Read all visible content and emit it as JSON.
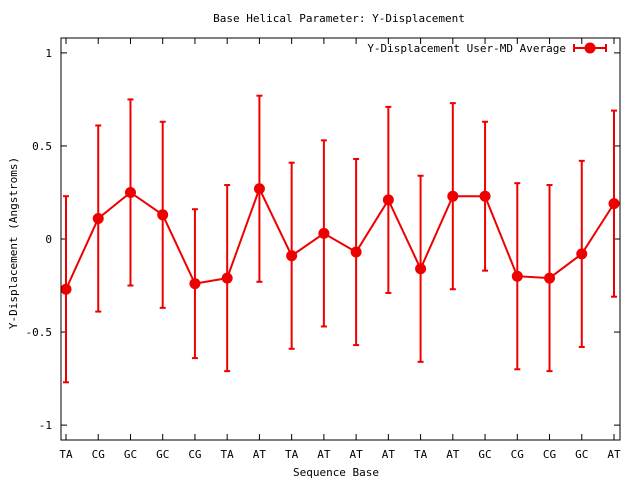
{
  "chart_data": {
    "type": "line",
    "title": "Base  Helical Parameter: Y-Displacement",
    "xlabel": "Sequence Base",
    "ylabel": "Y-Displacement (Angstroms)",
    "ylim": [
      -1.08,
      1.08
    ],
    "yticks": [
      -1,
      -0.5,
      0,
      0.5,
      1
    ],
    "ytick_labels": [
      "-1",
      "-0.5",
      "0",
      "0.5",
      "1"
    ],
    "categories": [
      "TA",
      "CG",
      "GC",
      "GC",
      "CG",
      "TA",
      "AT",
      "TA",
      "AT",
      "AT",
      "AT",
      "TA",
      "AT",
      "GC",
      "CG",
      "CG",
      "GC",
      "AT"
    ],
    "legend_position": "top-right",
    "grid": false,
    "series": [
      {
        "name": "Y-Displacement User-MD Average",
        "color": "#ee0000",
        "values": [
          -0.27,
          0.11,
          0.25,
          0.13,
          -0.24,
          -0.21,
          0.27,
          -0.09,
          0.03,
          -0.07,
          0.21,
          -0.16,
          0.23,
          0.23,
          -0.2,
          -0.21,
          -0.08,
          0.19
        ],
        "error": [
          0.5,
          0.5,
          0.5,
          0.5,
          0.4,
          0.5,
          0.5,
          0.5,
          0.5,
          0.5,
          0.5,
          0.5,
          0.5,
          0.4,
          0.5,
          0.5,
          0.5,
          0.5
        ]
      }
    ]
  }
}
